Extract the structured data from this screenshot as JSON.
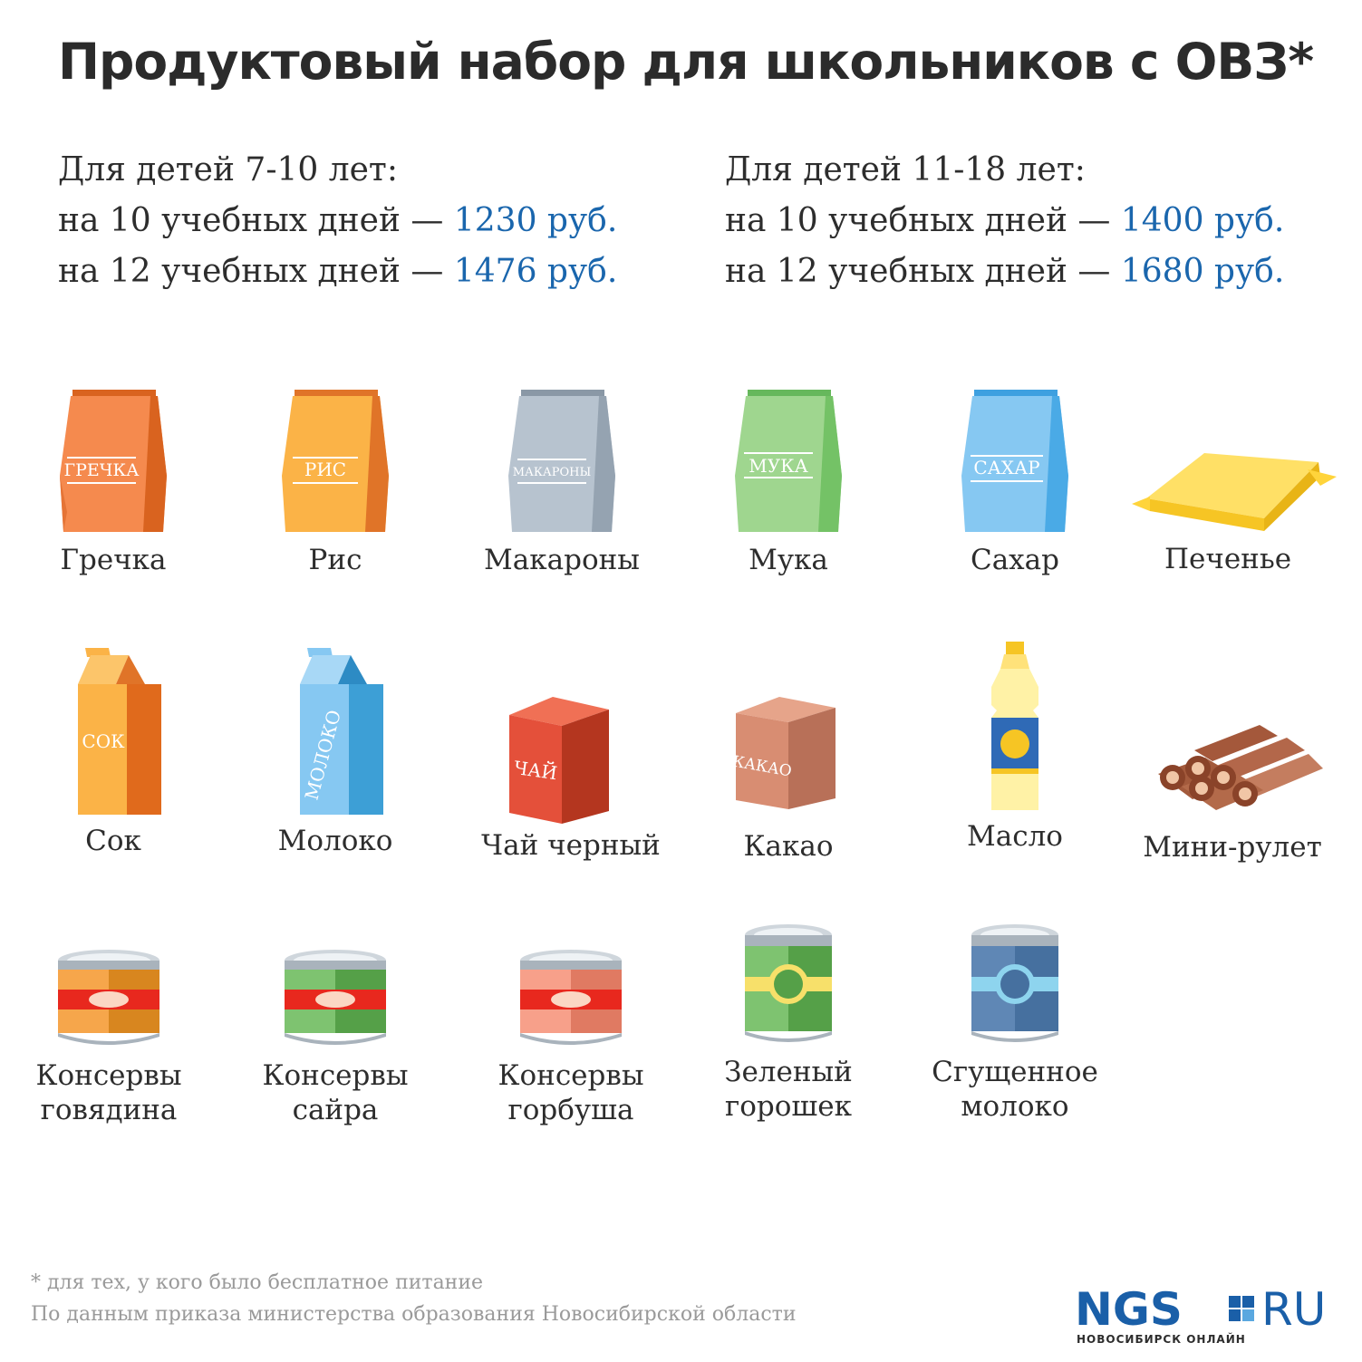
{
  "title": "Продуктовый набор для школьников с ОВЗ*",
  "prices": {
    "young": {
      "header": "Для детей 7-10 лет:",
      "line1_prefix": "на 10 учебных дней — ",
      "line1_value": "1230 руб.",
      "line2_prefix": "на 12 учебных дней — ",
      "line2_value": "1476 руб."
    },
    "old": {
      "header": "Для детей 11-18 лет:",
      "line1_prefix": "на 10 учебных дней — ",
      "line1_value": "1400 руб.",
      "line2_prefix": "на 12 учебных дней — ",
      "line2_value": "1680 руб."
    }
  },
  "colors": {
    "accent": "#1a66ad",
    "text": "#2d2d2d",
    "footnote": "#9a9a9a"
  },
  "items": {
    "grechka": {
      "label": "Гречка",
      "pkg": "ГРЕЧКА",
      "icon": "bag-icon"
    },
    "ris": {
      "label": "Рис",
      "pkg": "РИС",
      "icon": "bag-icon"
    },
    "makarony": {
      "label": "Макароны",
      "pkg": "МАКАРОНЫ",
      "icon": "bag-icon"
    },
    "muka": {
      "label": "Мука",
      "pkg": "МУКА",
      "icon": "bag-icon"
    },
    "sahar": {
      "label": "Сахар",
      "pkg": "САХАР",
      "icon": "bag-icon"
    },
    "pechenye": {
      "label": "Печенье",
      "icon": "cookie-pack-icon"
    },
    "sok": {
      "label": "Сок",
      "pkg": "СОК",
      "icon": "carton-icon"
    },
    "moloko": {
      "label": "Молоко",
      "pkg": "МОЛОКО",
      "icon": "carton-icon"
    },
    "chai": {
      "label": "Чай черный",
      "pkg": "ЧАЙ",
      "icon": "box-icon"
    },
    "kakao": {
      "label": "Какао",
      "pkg": "КАКАО",
      "icon": "box-icon"
    },
    "maslo": {
      "label": "Масло",
      "icon": "oil-bottle-icon"
    },
    "minirulet": {
      "label": "Мини-рулет",
      "icon": "roll-cake-icon"
    },
    "govyadina": {
      "label_line1": "Консервы",
      "label_line2": "говядина",
      "icon": "can-icon"
    },
    "saira": {
      "label_line1": "Консервы",
      "label_line2": "сайра",
      "icon": "can-icon"
    },
    "gorbusha": {
      "label_line1": "Консервы",
      "label_line2": "горбуша",
      "icon": "can-icon"
    },
    "goroshek": {
      "label_line1": "Зеленый",
      "label_line2": "горошек",
      "icon": "can-icon"
    },
    "sgushenka": {
      "label_line1": "Сгущенное",
      "label_line2": "молоко",
      "icon": "can-icon"
    }
  },
  "footer": {
    "note": "* для тех, у кого было бесплатное питание",
    "source": "По данным приказа министерства образования Новосибирской области"
  },
  "logo": {
    "main": "NGS",
    "ru": "RU",
    "sub": "НОВОСИБИРСК ОНЛАЙН"
  }
}
